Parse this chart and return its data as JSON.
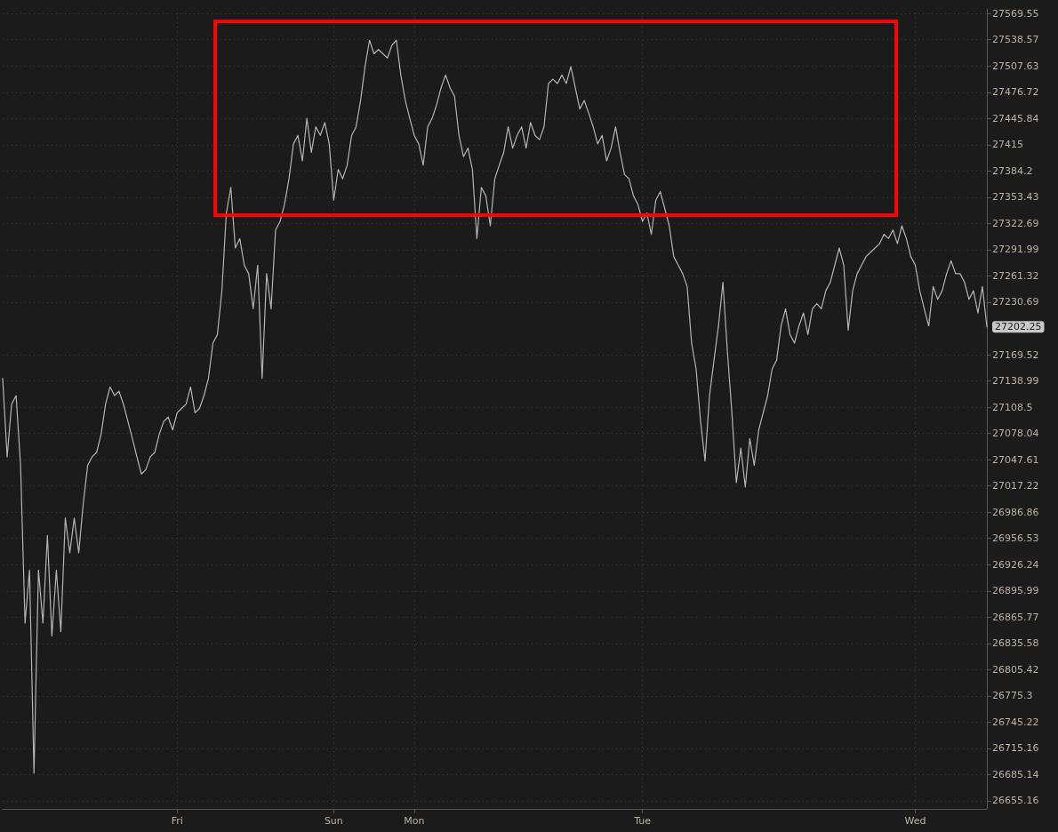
{
  "chart_data": {
    "type": "line",
    "log": true,
    "grid": true,
    "marker": "none",
    "line_style": "solid",
    "categories": [
      null,
      null,
      null,
      null,
      null,
      null,
      null,
      null,
      null,
      null,
      null,
      null,
      null,
      null,
      null,
      null,
      null,
      null,
      null,
      null,
      null,
      null,
      null,
      null,
      null,
      null,
      null,
      null,
      null,
      null,
      null,
      null,
      null,
      null,
      null,
      null,
      null,
      null,
      null,
      "Fri",
      null,
      null,
      null,
      null,
      null,
      null,
      null,
      null,
      null,
      null,
      null,
      null,
      null,
      null,
      null,
      null,
      null,
      null,
      null,
      null,
      null,
      null,
      null,
      null,
      null,
      null,
      null,
      null,
      null,
      null,
      null,
      null,
      null,
      null,
      "Sun",
      null,
      null,
      null,
      null,
      null,
      null,
      null,
      null,
      null,
      null,
      null,
      null,
      null,
      null,
      null,
      null,
      null,
      "Mon",
      null,
      null,
      null,
      null,
      null,
      null,
      null,
      null,
      null,
      null,
      null,
      null,
      null,
      null,
      null,
      null,
      null,
      null,
      null,
      null,
      null,
      null,
      null,
      null,
      null,
      null,
      null,
      null,
      null,
      null,
      null,
      null,
      null,
      null,
      null,
      null,
      null,
      null,
      null,
      null,
      null,
      null,
      null,
      null,
      null,
      null,
      null,
      null,
      null,
      null,
      "Tue",
      null,
      null,
      null,
      null,
      null,
      null,
      null,
      null,
      null,
      null,
      null,
      null,
      null,
      null,
      null,
      null,
      null,
      null,
      null,
      null,
      null,
      null,
      null,
      null,
      null,
      null,
      null,
      null,
      null,
      null,
      null,
      null,
      null,
      null,
      null,
      null,
      null,
      null,
      null,
      null,
      null,
      null,
      null,
      null,
      null,
      null,
      null,
      null,
      null,
      null,
      null,
      null,
      null,
      null,
      null,
      null,
      null,
      null,
      null,
      null,
      "Wed",
      null,
      null,
      null,
      null,
      null,
      null,
      null,
      null,
      null,
      null,
      null,
      null,
      null,
      null,
      null,
      null
    ],
    "ylim": [
      26646,
      27575
    ],
    "yticks": [
      26655.16,
      26685.14,
      26715.16,
      26745.22,
      26775.3,
      26805.42,
      26835.58,
      26865.77,
      26895.99,
      26926.24,
      26956.53,
      26986.86,
      27017.22,
      27047.61,
      27078.04,
      27108.5,
      27138.99,
      27169.52,
      27230.69,
      27261.32,
      27291.99,
      27322.69,
      27353.43,
      27384.2,
      27415,
      27445.84,
      27476.72,
      27507.63,
      27538.57,
      27569.55
    ],
    "annotations": [
      "27202.25"
    ],
    "series": [
      {
        "color": "#b4b4b4",
        "values": [
          27142,
          27051,
          27112,
          27122,
          27041,
          26859,
          26920,
          26687,
          26920,
          26859,
          26960,
          26844,
          26920,
          26849,
          26980,
          26940,
          26980,
          26940,
          26996,
          27041,
          27051,
          27056,
          27077,
          27112,
          27132,
          27122,
          27127,
          27112,
          27092,
          27072,
          27051,
          27031,
          27036,
          27051,
          27056,
          27077,
          27092,
          27097,
          27082,
          27102,
          27107,
          27112,
          27132,
          27102,
          27107,
          27122,
          27142,
          27183,
          27193,
          27244,
          27335,
          27365,
          27294,
          27305,
          27274,
          27264,
          27223,
          27274,
          27142,
          27264,
          27223,
          27315,
          27325,
          27345,
          27375,
          27416,
          27426,
          27396,
          27446,
          27406,
          27436,
          27426,
          27441,
          27416,
          27350,
          27386,
          27375,
          27391,
          27426,
          27436,
          27467,
          27507,
          27538,
          27522,
          27527,
          27522,
          27517,
          27532,
          27538,
          27497,
          27467,
          27446,
          27426,
          27416,
          27391,
          27436,
          27446,
          27462,
          27482,
          27497,
          27482,
          27472,
          27426,
          27401,
          27411,
          27386,
          27305,
          27365,
          27355,
          27320,
          27375,
          27391,
          27406,
          27436,
          27411,
          27426,
          27436,
          27411,
          27441,
          27426,
          27421,
          27436,
          27487,
          27492,
          27487,
          27497,
          27487,
          27507,
          27482,
          27457,
          27467,
          27452,
          27436,
          27416,
          27426,
          27396,
          27411,
          27436,
          27406,
          27380,
          27375,
          27355,
          27345,
          27325,
          27335,
          27310,
          27350,
          27360,
          27340,
          27320,
          27284,
          27274,
          27264,
          27249,
          27183,
          27153,
          27092,
          27046,
          27122,
          27163,
          27203,
          27254,
          27173,
          27102,
          27021,
          27061,
          27016,
          27072,
          27041,
          27082,
          27102,
          27122,
          27153,
          27163,
          27203,
          27223,
          27193,
          27183,
          27203,
          27218,
          27193,
          27223,
          27229,
          27223,
          27244,
          27254,
          27274,
          27294,
          27274,
          27198,
          27244,
          27264,
          27274,
          27284,
          27289,
          27294,
          27299,
          27310,
          27305,
          27315,
          27299,
          27320,
          27305,
          27284,
          27274,
          27244,
          27223,
          27203,
          27249,
          27234,
          27244,
          27264,
          27279,
          27264,
          27264,
          27254,
          27234,
          27244,
          27218,
          27249,
          27202
        ]
      }
    ]
  }
}
